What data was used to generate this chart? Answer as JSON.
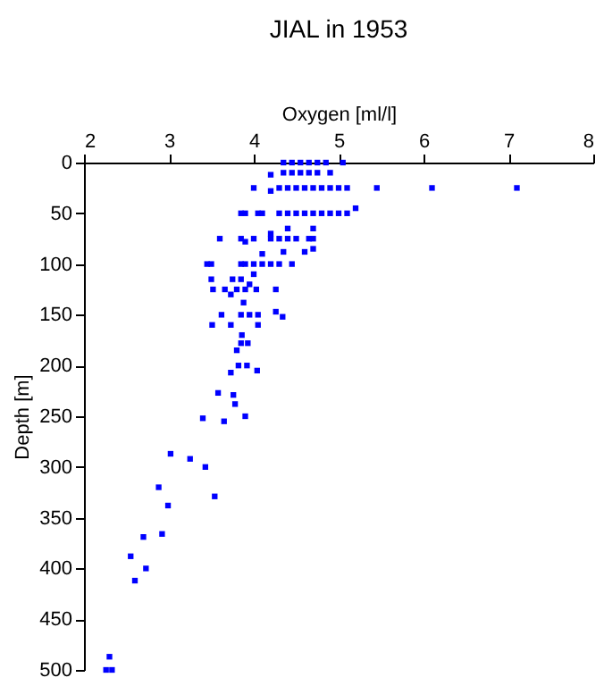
{
  "chart_data": {
    "type": "scatter",
    "title": "JIAL in 1953",
    "xlabel": "Oxygen [ml/l]",
    "ylabel": "Depth [m]",
    "x": [
      4.35,
      4.45,
      4.55,
      4.65,
      4.75,
      4.85,
      5.05,
      4.2,
      4.35,
      4.45,
      4.55,
      4.65,
      4.75,
      4.9,
      4.0,
      4.2,
      4.3,
      4.4,
      4.5,
      4.6,
      4.7,
      4.8,
      4.9,
      5.0,
      5.1,
      5.45,
      6.1,
      7.1,
      3.85,
      3.9,
      4.05,
      4.1,
      4.3,
      4.4,
      4.5,
      4.6,
      4.7,
      4.8,
      4.9,
      5.0,
      5.1,
      5.2,
      4.4,
      4.7,
      4.2,
      3.6,
      3.85,
      3.9,
      4.0,
      4.2,
      4.3,
      4.4,
      4.5,
      4.65,
      4.7,
      4.1,
      4.35,
      4.6,
      4.7,
      3.45,
      3.5,
      3.85,
      3.9,
      4.0,
      4.1,
      4.2,
      4.3,
      4.45,
      4.0,
      3.5,
      3.75,
      3.85,
      3.52,
      3.66,
      3.8,
      3.9,
      4.03,
      4.26,
      3.95,
      3.73,
      3.88,
      4.26,
      3.62,
      3.85,
      3.95,
      4.05,
      4.34,
      3.51,
      3.73,
      4.05,
      3.86,
      3.85,
      3.93,
      3.8,
      3.82,
      3.92,
      4.04,
      3.73,
      3.58,
      3.76,
      3.78,
      3.9,
      3.4,
      3.65,
      3.02,
      3.25,
      3.43,
      2.88,
      3.54,
      2.99,
      2.92,
      2.7,
      2.55,
      2.73,
      2.6,
      2.3,
      2.26,
      2.33
    ],
    "values": [
      0,
      0,
      0,
      0,
      0,
      0,
      0,
      12,
      10,
      10,
      10,
      10,
      10,
      10,
      25,
      28,
      25,
      25,
      25,
      25,
      25,
      25,
      25,
      25,
      25,
      25,
      25,
      25,
      50,
      50,
      50,
      50,
      50,
      50,
      50,
      50,
      50,
      50,
      50,
      50,
      50,
      45,
      65,
      65,
      70,
      75,
      75,
      78,
      75,
      75,
      75,
      75,
      75,
      75,
      75,
      90,
      88,
      88,
      85,
      100,
      100,
      100,
      100,
      100,
      100,
      100,
      100,
      100,
      110,
      115,
      115,
      115,
      125,
      125,
      125,
      125,
      125,
      125,
      120,
      130,
      138,
      147,
      150,
      150,
      150,
      150,
      152,
      160,
      160,
      160,
      170,
      178,
      178,
      185,
      200,
      200,
      205,
      207,
      227,
      229,
      238,
      250,
      252,
      255,
      287,
      292,
      300,
      320,
      329,
      338,
      366,
      369,
      388,
      400,
      412,
      487,
      500,
      500
    ],
    "color": "#0000ff",
    "marker": "square",
    "xlim": [
      2,
      8
    ],
    "xticks": [
      2,
      3,
      4,
      5,
      6,
      7,
      8
    ],
    "ylim": [
      500,
      0
    ],
    "yticks": [
      0,
      50,
      100,
      150,
      200,
      250,
      300,
      350,
      400,
      450,
      500
    ],
    "grid": false
  }
}
